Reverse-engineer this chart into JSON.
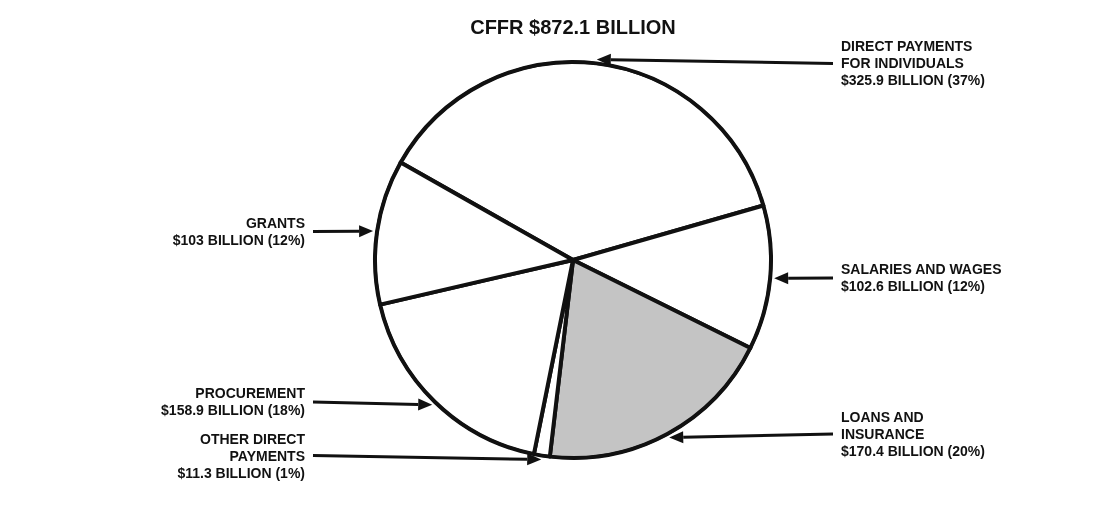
{
  "chart_data": {
    "type": "pie",
    "title": "CFFR $872.1 BILLION",
    "categories": [
      "DIRECT PAYMENTS FOR INDIVIDUALS",
      "SALARIES AND WAGES",
      "LOANS AND INSURANCE",
      "OTHER DIRECT PAYMENTS",
      "PROCUREMENT",
      "GRANTS"
    ],
    "values": [
      325.9,
      102.6,
      170.4,
      11.3,
      158.9,
      103
    ],
    "value_labels": [
      "$325.9 BILLION (37%)",
      "$102.6 BILLION (12%)",
      "$170.4 BILLION (20%)",
      "$11.3 BILLION (1%)",
      "$158.9 BILLION (18%)",
      "$103 BILLION (12%)"
    ],
    "colors": [
      "#ffffff",
      "#ffffff",
      "#c4c4c4",
      "#ffffff",
      "#ffffff",
      "#ffffff"
    ]
  }
}
